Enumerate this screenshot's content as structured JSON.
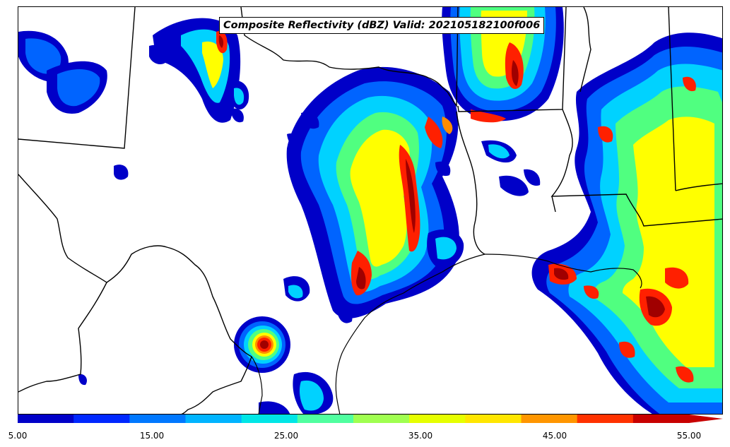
{
  "title": "Composite Reflectivity (dBZ) Valid: 202105182100f006",
  "colorbar": {
    "colors": [
      "#0000c8",
      "#0028ff",
      "#0078ff",
      "#00b4ff",
      "#00e6e6",
      "#50ffa0",
      "#a0ff50",
      "#e6ff00",
      "#ffe600",
      "#ff9600",
      "#ff3200",
      "#c80000"
    ],
    "tick_labels": [
      "5.00",
      "15.00",
      "25.00",
      "35.00",
      "45.00",
      "55.00"
    ],
    "extend": "max"
  },
  "storm_colors": {
    "outer": "#0000c8",
    "blue": "#0064ff",
    "cyan": "#00d2ff",
    "green": "#50ff80",
    "yellow": "#ffff00",
    "orange": "#ff8c00",
    "red": "#ff2000",
    "darkred": "#a00000"
  }
}
